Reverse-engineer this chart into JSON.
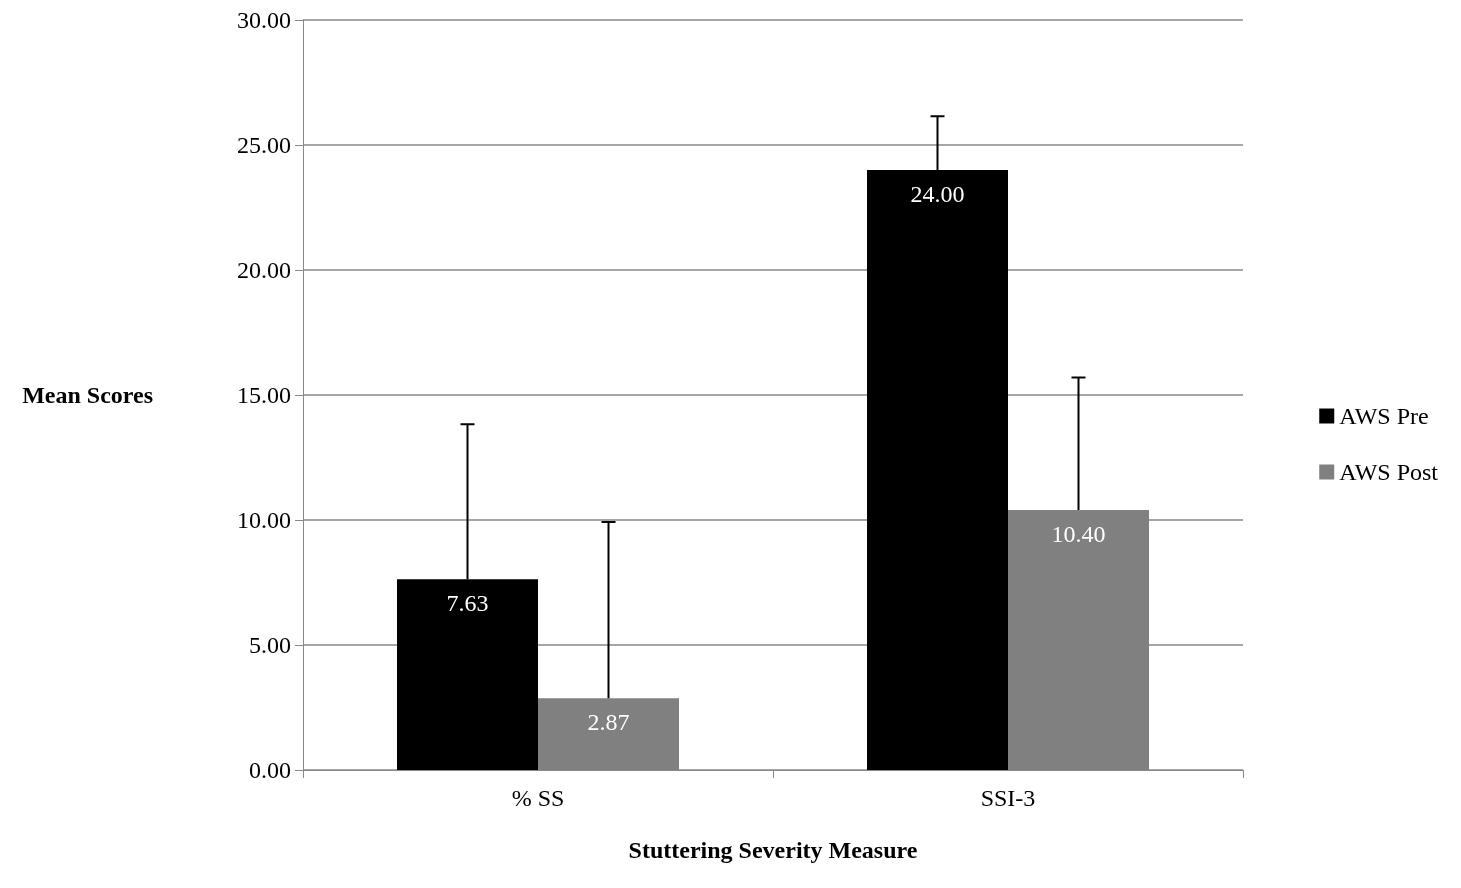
{
  "chart_data": {
    "type": "bar",
    "xlabel": "Stuttering Severity Measure",
    "ylabel": "Mean Scores",
    "categories": [
      "% SS",
      "SSI-3"
    ],
    "series": [
      {
        "name": "AWS Pre",
        "color": "#000000",
        "values": [
          7.63,
          24.0
        ],
        "value_labels": [
          "7.63",
          "24.00"
        ],
        "errors": [
          [
            7.63,
            13.83
          ],
          [
            24.0,
            26.15
          ]
        ]
      },
      {
        "name": "AWS Post",
        "color": "#808080",
        "values": [
          2.87,
          10.4
        ],
        "value_labels": [
          "2.87",
          "10.40"
        ],
        "errors": [
          [
            2.87,
            9.92
          ],
          [
            10.4,
            15.7
          ]
        ]
      }
    ],
    "ylim": [
      0,
      30
    ],
    "yticks": [
      {
        "value": 0,
        "label": "0.00"
      },
      {
        "value": 5,
        "label": "5.00"
      },
      {
        "value": 10,
        "label": "10.00"
      },
      {
        "value": 15,
        "label": "15.00"
      },
      {
        "value": 20,
        "label": "20.00"
      },
      {
        "value": 25,
        "label": "25.00"
      },
      {
        "value": 30,
        "label": "30.00"
      }
    ],
    "grid": "y",
    "legend": "right",
    "data_labels": true
  }
}
